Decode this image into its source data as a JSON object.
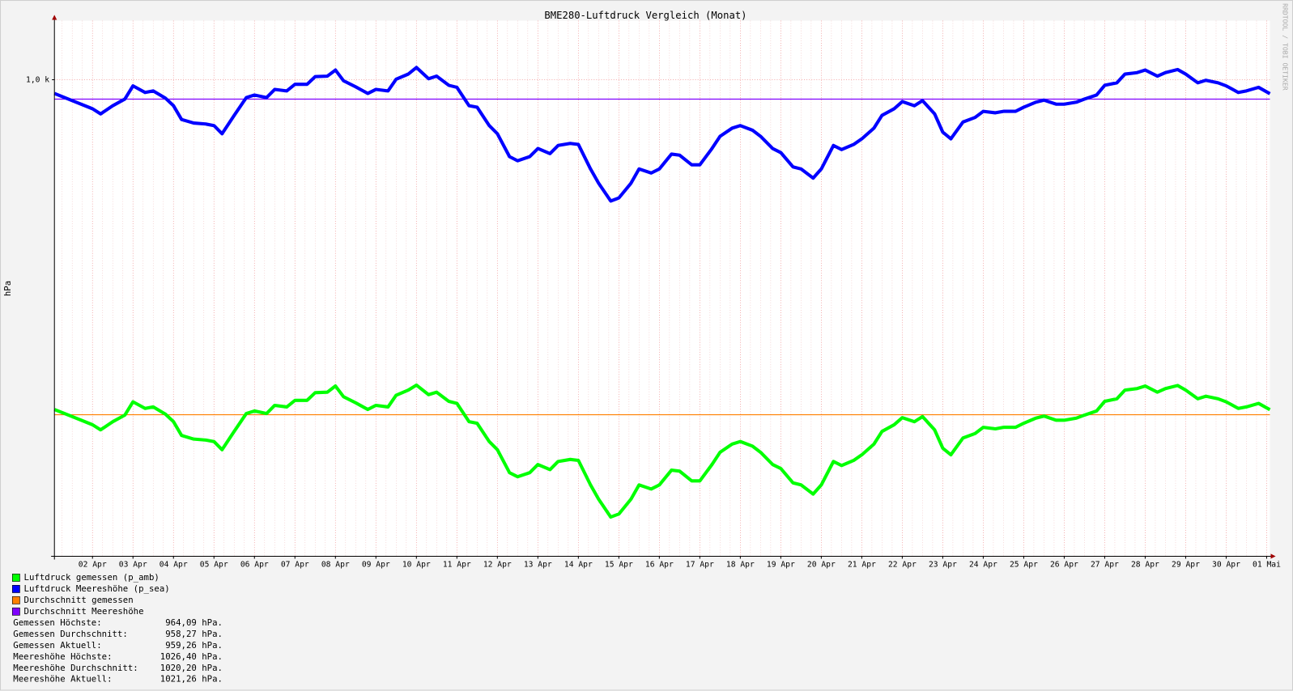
{
  "chart_data": {
    "type": "line",
    "title": "BME280-Luftdruck Vergleich (Monat)",
    "y_label": "hPa",
    "watermark": "RRDTOOL / TOBI OETIKER",
    "xlim": [
      0.06,
      30.08
    ],
    "xticks": [
      {
        "value": 1,
        "label": "02 Apr"
      },
      {
        "value": 2,
        "label": "03 Apr"
      },
      {
        "value": 3,
        "label": "04 Apr"
      },
      {
        "value": 4,
        "label": "05 Apr"
      },
      {
        "value": 5,
        "label": "06 Apr"
      },
      {
        "value": 6,
        "label": "07 Apr"
      },
      {
        "value": 7,
        "label": "08 Apr"
      },
      {
        "value": 8,
        "label": "09 Apr"
      },
      {
        "value": 9,
        "label": "10 Apr"
      },
      {
        "value": 10,
        "label": "11 Apr"
      },
      {
        "value": 11,
        "label": "12 Apr"
      },
      {
        "value": 12,
        "label": "13 Apr"
      },
      {
        "value": 13,
        "label": "14 Apr"
      },
      {
        "value": 14,
        "label": "15 Apr"
      },
      {
        "value": 15,
        "label": "16 Apr"
      },
      {
        "value": 16,
        "label": "17 Apr"
      },
      {
        "value": 17,
        "label": "18 Apr"
      },
      {
        "value": 18,
        "label": "19 Apr"
      },
      {
        "value": 19,
        "label": "20 Apr"
      },
      {
        "value": 20,
        "label": "21 Apr"
      },
      {
        "value": 21,
        "label": "22 Apr"
      },
      {
        "value": 22,
        "label": "23 Apr"
      },
      {
        "value": 23,
        "label": "24 Apr"
      },
      {
        "value": 24,
        "label": "25 Apr"
      },
      {
        "value": 25,
        "label": "26 Apr"
      },
      {
        "value": 26,
        "label": "27 Apr"
      },
      {
        "value": 27,
        "label": "28 Apr"
      },
      {
        "value": 28,
        "label": "29 Apr"
      },
      {
        "value": 29,
        "label": "30 Apr"
      },
      {
        "value": 30,
        "label": "01 Mai"
      }
    ],
    "ylim": [
      930.5,
      1035.6
    ],
    "yticks": [
      {
        "value": 1024,
        "label": "1,0 k"
      }
    ],
    "grid": true,
    "x": [
      0.06,
      0.5,
      1,
      1.2,
      1.5,
      1.8,
      2,
      2.3,
      2.5,
      2.8,
      3,
      3.2,
      3.5,
      3.8,
      4,
      4.2,
      4.5,
      4.8,
      5,
      5.3,
      5.5,
      5.8,
      6,
      6.3,
      6.5,
      6.8,
      7,
      7.2,
      7.5,
      7.8,
      8,
      8.3,
      8.5,
      8.8,
      9,
      9.3,
      9.5,
      9.8,
      10,
      10.3,
      10.5,
      10.8,
      11,
      11.3,
      11.5,
      11.8,
      12,
      12.3,
      12.5,
      12.8,
      13,
      13.3,
      13.5,
      13.8,
      14,
      14.3,
      14.5,
      14.8,
      15,
      15.3,
      15.5,
      15.8,
      16,
      16.3,
      16.5,
      16.8,
      17,
      17.3,
      17.5,
      17.8,
      18,
      18.3,
      18.5,
      18.8,
      19,
      19.3,
      19.5,
      19.8,
      20,
      20.3,
      20.5,
      20.8,
      21,
      21.3,
      21.5,
      21.8,
      22,
      22.2,
      22.5,
      22.8,
      23,
      23.3,
      23.5,
      23.8,
      24,
      24.3,
      24.5,
      24.8,
      25,
      25.3,
      25.5,
      25.8,
      26,
      26.3,
      26.5,
      26.8,
      27,
      27.3,
      27.5,
      27.8,
      28,
      28.3,
      28.5,
      28.8,
      29,
      29.3,
      29.5,
      29.8,
      30.08
    ],
    "series": [
      {
        "name": "Luftdruck gemessen (p_amb)",
        "color": "#00ff00",
        "values": [
          959.3,
          957.9,
          956.3,
          955.3,
          956.9,
          958.2,
          960.8,
          959.5,
          959.8,
          958.4,
          956.9,
          954.2,
          953.5,
          953.3,
          953.0,
          951.4,
          955.0,
          958.5,
          959.0,
          958.5,
          960.1,
          959.8,
          961.1,
          961.1,
          962.6,
          962.7,
          963.9,
          961.8,
          960.6,
          959.3,
          960.1,
          959.8,
          962.1,
          963.1,
          964.09,
          962.2,
          962.7,
          960.9,
          960.5,
          956.9,
          956.6,
          953.0,
          951.4,
          946.9,
          946.1,
          946.9,
          948.5,
          947.5,
          949.1,
          949.5,
          949.3,
          944.5,
          941.7,
          938.2,
          938.8,
          941.7,
          944.5,
          943.7,
          944.5,
          947.4,
          947.2,
          945.3,
          945.3,
          948.5,
          950.9,
          952.5,
          953.0,
          952.1,
          950.9,
          948.5,
          947.7,
          944.9,
          944.5,
          942.7,
          944.5,
          949.1,
          948.3,
          949.3,
          950.4,
          952.5,
          955.0,
          956.3,
          957.7,
          956.9,
          957.9,
          955.3,
          951.7,
          950.4,
          953.7,
          954.6,
          955.8,
          955.5,
          955.8,
          955.8,
          956.6,
          957.6,
          958.0,
          957.2,
          957.2,
          957.6,
          958.2,
          959.0,
          960.9,
          961.4,
          963.1,
          963.4,
          963.9,
          962.7,
          963.4,
          964.0,
          963.1,
          961.4,
          961.9,
          961.4,
          960.8,
          959.5,
          959.8,
          960.5,
          959.26
        ]
      },
      {
        "name": "Luftdruck Meereshöhe (p_sea)",
        "color": "#0000ff",
        "values": [
          1021.3,
          1019.9,
          1018.3,
          1017.3,
          1018.9,
          1020.2,
          1022.8,
          1021.5,
          1021.8,
          1020.4,
          1018.9,
          1016.2,
          1015.5,
          1015.3,
          1015.0,
          1013.4,
          1017.0,
          1020.5,
          1021.0,
          1020.5,
          1022.1,
          1021.8,
          1023.1,
          1023.1,
          1024.6,
          1024.7,
          1025.9,
          1023.8,
          1022.6,
          1021.3,
          1022.1,
          1021.8,
          1024.1,
          1025.1,
          1026.4,
          1024.2,
          1024.7,
          1022.9,
          1022.5,
          1018.9,
          1018.6,
          1015.0,
          1013.4,
          1008.9,
          1008.1,
          1008.9,
          1010.5,
          1009.5,
          1011.1,
          1011.5,
          1011.3,
          1006.5,
          1003.7,
          1000.2,
          1000.8,
          1003.7,
          1006.5,
          1005.7,
          1006.5,
          1009.4,
          1009.2,
          1007.3,
          1007.3,
          1010.5,
          1012.9,
          1014.5,
          1015.0,
          1014.1,
          1012.9,
          1010.5,
          1009.7,
          1006.9,
          1006.5,
          1004.7,
          1006.5,
          1011.1,
          1010.3,
          1011.3,
          1012.4,
          1014.5,
          1017.0,
          1018.3,
          1019.7,
          1018.9,
          1019.9,
          1017.3,
          1013.7,
          1012.4,
          1015.7,
          1016.6,
          1017.8,
          1017.5,
          1017.8,
          1017.8,
          1018.6,
          1019.6,
          1020.0,
          1019.2,
          1019.2,
          1019.6,
          1020.2,
          1021.0,
          1022.9,
          1023.4,
          1025.1,
          1025.4,
          1025.9,
          1024.7,
          1025.4,
          1026.0,
          1025.1,
          1023.4,
          1023.9,
          1023.4,
          1022.8,
          1021.5,
          1021.8,
          1022.5,
          1021.26
        ]
      }
    ],
    "reference_lines": [
      {
        "name": "Durchschnitt gemessen",
        "color": "#ff8000",
        "value": 958.27
      },
      {
        "name": "Durchschnitt Meereshöhe",
        "color": "#8000ff",
        "value": 1020.2
      }
    ],
    "stats": [
      {
        "label": "Gemessen Höchste:",
        "value_label": "964,09 hPa."
      },
      {
        "label": "Gemessen Durchschnitt:",
        "value_label": "958,27 hPa."
      },
      {
        "label": "Gemessen Aktuell:",
        "value_label": "959,26 hPa."
      },
      {
        "label": "Meereshöhe Höchste:",
        "value_label": "1026,40 hPa."
      },
      {
        "label": "Meereshöhe Durchschnitt:",
        "value_label": "1020,20 hPa."
      },
      {
        "label": "Meereshöhe Aktuell:",
        "value_label": "1021,26 hPa."
      }
    ]
  }
}
